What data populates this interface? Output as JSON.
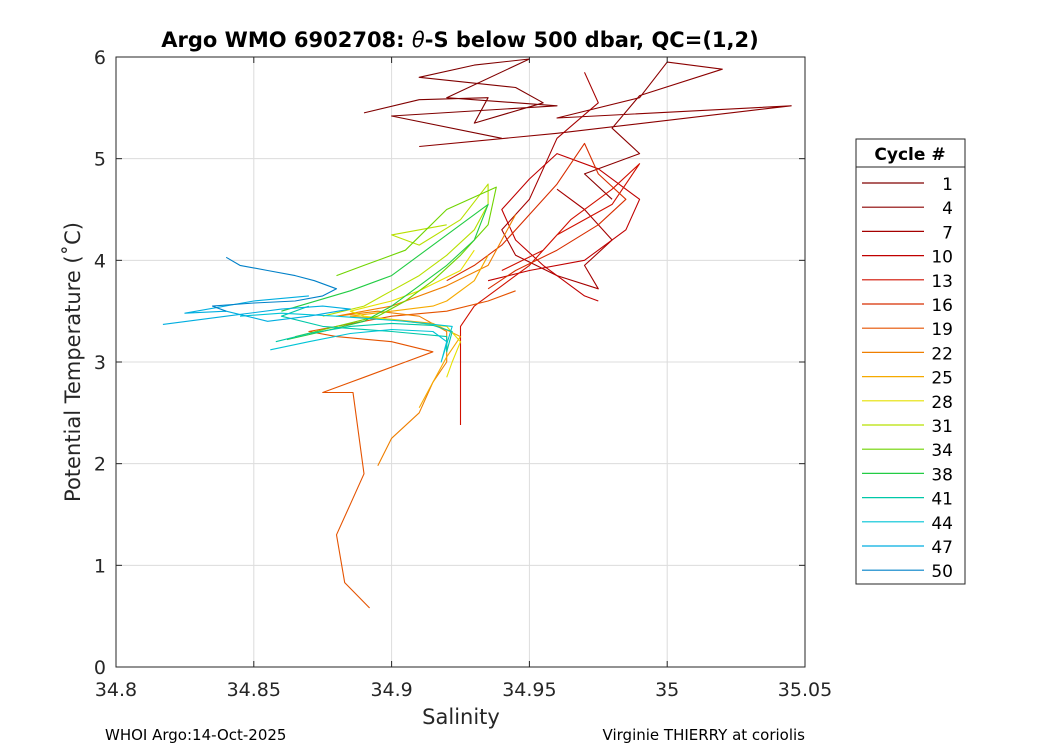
{
  "chart_data": {
    "type": "line",
    "title_main": "Argo WMO 6902708: ",
    "title_theta": "θ",
    "title_rest": "-S below 500 dbar,  QC=(1,2)",
    "xlabel": "Salinity",
    "ylabel": "Potential Temperature (˚C)",
    "xlim": [
      34.8,
      35.05
    ],
    "ylim": [
      0,
      6
    ],
    "xticks": [
      34.8,
      34.85,
      34.9,
      34.95,
      35,
      35.05
    ],
    "xtick_labels": [
      "34.8",
      "34.85",
      "34.9",
      "34.95",
      "35",
      "35.05"
    ],
    "yticks": [
      0,
      1,
      2,
      3,
      4,
      5,
      6
    ],
    "ytick_labels": [
      "0",
      "1",
      "2",
      "3",
      "4",
      "5",
      "6"
    ],
    "grid": true,
    "legend_title": "Cycle #",
    "legend_position": "right",
    "series": [
      {
        "name": "1",
        "color": "#800000",
        "points": [
          [
            34.89,
            5.45
          ],
          [
            34.91,
            5.58
          ],
          [
            34.935,
            5.6
          ],
          [
            34.93,
            5.35
          ],
          [
            34.955,
            5.55
          ],
          [
            34.945,
            5.7
          ],
          [
            34.91,
            5.8
          ],
          [
            34.93,
            5.92
          ],
          [
            34.95,
            5.98
          ],
          [
            34.92,
            5.6
          ],
          [
            34.96,
            5.52
          ],
          [
            34.9,
            5.42
          ],
          [
            34.94,
            5.2
          ]
        ]
      },
      {
        "name": "4",
        "color": "#8b0000",
        "points": [
          [
            34.91,
            5.12
          ],
          [
            34.96,
            5.25
          ],
          [
            35.045,
            5.52
          ],
          [
            34.96,
            5.4
          ],
          [
            34.99,
            5.6
          ],
          [
            35.0,
            5.95
          ],
          [
            35.02,
            5.88
          ],
          [
            34.99,
            5.62
          ],
          [
            34.98,
            5.3
          ],
          [
            34.99,
            5.05
          ],
          [
            34.97,
            4.85
          ],
          [
            34.98,
            4.6
          ]
        ]
      },
      {
        "name": "7",
        "color": "#a50000",
        "points": [
          [
            34.97,
            5.85
          ],
          [
            34.975,
            5.55
          ],
          [
            34.96,
            5.2
          ],
          [
            34.955,
            4.9
          ],
          [
            34.95,
            4.6
          ],
          [
            34.94,
            4.3
          ],
          [
            34.945,
            4.05
          ],
          [
            34.96,
            3.85
          ],
          [
            34.975,
            3.72
          ],
          [
            34.97,
            3.95
          ],
          [
            34.98,
            4.2
          ],
          [
            34.97,
            4.5
          ],
          [
            34.96,
            4.7
          ]
        ]
      },
      {
        "name": "10",
        "color": "#c00000",
        "points": [
          [
            34.935,
            3.8
          ],
          [
            34.95,
            3.9
          ],
          [
            34.97,
            4.0
          ],
          [
            34.985,
            4.3
          ],
          [
            34.99,
            4.6
          ],
          [
            34.975,
            4.9
          ],
          [
            34.96,
            5.05
          ],
          [
            34.95,
            4.8
          ],
          [
            34.94,
            4.5
          ],
          [
            34.945,
            4.2
          ],
          [
            34.955,
            3.95
          ],
          [
            34.97,
            3.65
          ],
          [
            34.975,
            3.6
          ]
        ]
      },
      {
        "name": "13",
        "color": "#d11000",
        "points": [
          [
            34.94,
            3.9
          ],
          [
            34.955,
            4.1
          ],
          [
            34.965,
            4.4
          ],
          [
            34.98,
            4.7
          ],
          [
            34.99,
            4.95
          ],
          [
            34.98,
            4.55
          ],
          [
            34.96,
            4.25
          ],
          [
            34.95,
            3.95
          ],
          [
            34.94,
            3.75
          ],
          [
            34.93,
            3.55
          ],
          [
            34.925,
            3.35
          ],
          [
            34.925,
            2.38
          ]
        ]
      },
      {
        "name": "16",
        "color": "#d82e00",
        "points": [
          [
            34.935,
            3.72
          ],
          [
            34.945,
            3.9
          ],
          [
            34.96,
            4.1
          ],
          [
            34.975,
            4.35
          ],
          [
            34.985,
            4.6
          ],
          [
            34.975,
            4.85
          ],
          [
            34.97,
            5.15
          ],
          [
            34.96,
            4.75
          ],
          [
            34.95,
            4.45
          ],
          [
            34.94,
            4.15
          ],
          [
            34.93,
            3.95
          ],
          [
            34.92,
            3.8
          ]
        ]
      },
      {
        "name": "19",
        "color": "#e55300",
        "points": [
          [
            34.892,
            0.58
          ],
          [
            34.883,
            0.83
          ],
          [
            34.88,
            1.3
          ],
          [
            34.885,
            1.6
          ],
          [
            34.89,
            1.9
          ],
          [
            34.888,
            2.3
          ],
          [
            34.886,
            2.7
          ],
          [
            34.875,
            2.7
          ],
          [
            34.89,
            2.85
          ],
          [
            34.905,
            3.0
          ],
          [
            34.915,
            3.1
          ],
          [
            34.9,
            3.2
          ],
          [
            34.88,
            3.25
          ],
          [
            34.87,
            3.3
          ],
          [
            34.9,
            3.45
          ],
          [
            34.92,
            3.5
          ],
          [
            34.935,
            3.6
          ],
          [
            34.945,
            3.7
          ]
        ]
      },
      {
        "name": "22",
        "color": "#ef7f00",
        "points": [
          [
            34.895,
            1.98
          ],
          [
            34.9,
            2.25
          ],
          [
            34.91,
            2.5
          ],
          [
            34.915,
            2.8
          ],
          [
            34.92,
            3.0
          ],
          [
            34.92,
            3.3
          ],
          [
            34.91,
            3.45
          ],
          [
            34.895,
            3.5
          ],
          [
            34.88,
            3.45
          ],
          [
            34.9,
            3.55
          ],
          [
            34.92,
            3.75
          ],
          [
            34.935,
            3.95
          ],
          [
            34.94,
            4.2
          ],
          [
            34.945,
            4.45
          ]
        ]
      },
      {
        "name": "25",
        "color": "#f6aa00",
        "points": [
          [
            34.91,
            2.55
          ],
          [
            34.915,
            2.8
          ],
          [
            34.92,
            3.05
          ],
          [
            34.925,
            3.25
          ],
          [
            34.915,
            3.38
          ],
          [
            34.9,
            3.42
          ],
          [
            34.885,
            3.45
          ],
          [
            34.9,
            3.5
          ],
          [
            34.915,
            3.55
          ],
          [
            34.92,
            3.6
          ],
          [
            34.93,
            3.8
          ],
          [
            34.935,
            4.05
          ]
        ]
      },
      {
        "name": "28",
        "color": "#e6e100",
        "points": [
          [
            34.92,
            2.85
          ],
          [
            34.922,
            3.0
          ],
          [
            34.925,
            3.2
          ],
          [
            34.92,
            3.35
          ],
          [
            34.905,
            3.4
          ],
          [
            34.89,
            3.45
          ],
          [
            34.885,
            3.5
          ],
          [
            34.9,
            3.6
          ],
          [
            34.91,
            3.7
          ],
          [
            34.925,
            3.9
          ],
          [
            34.93,
            4.1
          ]
        ]
      },
      {
        "name": "31",
        "color": "#b8e000",
        "points": [
          [
            34.875,
            3.45
          ],
          [
            34.89,
            3.55
          ],
          [
            34.9,
            3.7
          ],
          [
            34.91,
            3.85
          ],
          [
            34.92,
            4.05
          ],
          [
            34.93,
            4.3
          ],
          [
            34.935,
            4.55
          ],
          [
            34.935,
            4.75
          ],
          [
            34.925,
            4.4
          ],
          [
            34.91,
            4.15
          ],
          [
            34.9,
            4.25
          ],
          [
            34.92,
            4.35
          ]
        ]
      },
      {
        "name": "34",
        "color": "#6fd400",
        "points": [
          [
            34.865,
            3.25
          ],
          [
            34.88,
            3.35
          ],
          [
            34.895,
            3.45
          ],
          [
            34.905,
            3.6
          ],
          [
            34.915,
            3.8
          ],
          [
            34.925,
            4.05
          ],
          [
            34.935,
            4.35
          ],
          [
            34.938,
            4.72
          ],
          [
            34.92,
            4.5
          ],
          [
            34.905,
            4.1
          ],
          [
            34.89,
            3.95
          ],
          [
            34.88,
            3.85
          ]
        ]
      },
      {
        "name": "38",
        "color": "#22cc44",
        "points": [
          [
            34.862,
            3.22
          ],
          [
            34.875,
            3.3
          ],
          [
            34.89,
            3.4
          ],
          [
            34.9,
            3.55
          ],
          [
            34.91,
            3.75
          ],
          [
            34.92,
            3.95
          ],
          [
            34.93,
            4.2
          ],
          [
            34.935,
            4.55
          ],
          [
            34.92,
            4.25
          ],
          [
            34.9,
            3.85
          ],
          [
            34.885,
            3.7
          ],
          [
            34.86,
            3.5
          ]
        ]
      },
      {
        "name": "41",
        "color": "#00c8a8",
        "points": [
          [
            34.858,
            3.2
          ],
          [
            34.87,
            3.28
          ],
          [
            34.885,
            3.35
          ],
          [
            34.9,
            3.38
          ],
          [
            34.915,
            3.36
          ],
          [
            34.922,
            3.3
          ],
          [
            34.92,
            3.1
          ],
          [
            34.92,
            3.25
          ],
          [
            34.9,
            3.3
          ],
          [
            34.875,
            3.35
          ],
          [
            34.86,
            3.45
          ],
          [
            34.87,
            3.55
          ]
        ]
      },
      {
        "name": "44",
        "color": "#00c4d6",
        "points": [
          [
            34.856,
            3.12
          ],
          [
            34.87,
            3.2
          ],
          [
            34.885,
            3.28
          ],
          [
            34.9,
            3.32
          ],
          [
            34.915,
            3.3
          ],
          [
            34.92,
            3.2
          ],
          [
            34.918,
            3.0
          ],
          [
            34.922,
            3.35
          ],
          [
            34.905,
            3.4
          ],
          [
            34.88,
            3.45
          ],
          [
            34.86,
            3.48
          ],
          [
            34.845,
            3.45
          ]
        ]
      },
      {
        "name": "47",
        "color": "#00aee0",
        "points": [
          [
            34.817,
            3.37
          ],
          [
            34.84,
            3.45
          ],
          [
            34.86,
            3.52
          ],
          [
            34.875,
            3.55
          ],
          [
            34.885,
            3.52
          ],
          [
            34.87,
            3.45
          ],
          [
            34.855,
            3.4
          ],
          [
            34.84,
            3.5
          ],
          [
            34.825,
            3.48
          ],
          [
            34.85,
            3.6
          ],
          [
            34.87,
            3.65
          ]
        ]
      },
      {
        "name": "50",
        "color": "#0080c8",
        "points": [
          [
            34.84,
            4.03
          ],
          [
            34.845,
            3.95
          ],
          [
            34.855,
            3.9
          ],
          [
            34.865,
            3.85
          ],
          [
            34.872,
            3.8
          ],
          [
            34.88,
            3.72
          ],
          [
            34.875,
            3.65
          ],
          [
            34.865,
            3.6
          ],
          [
            34.85,
            3.58
          ],
          [
            34.835,
            3.55
          ],
          [
            34.84,
            3.5
          ]
        ]
      }
    ]
  },
  "footer": {
    "left": "WHOI Argo:14-Oct-2025",
    "right": "Virginie THIERRY at coriolis"
  }
}
